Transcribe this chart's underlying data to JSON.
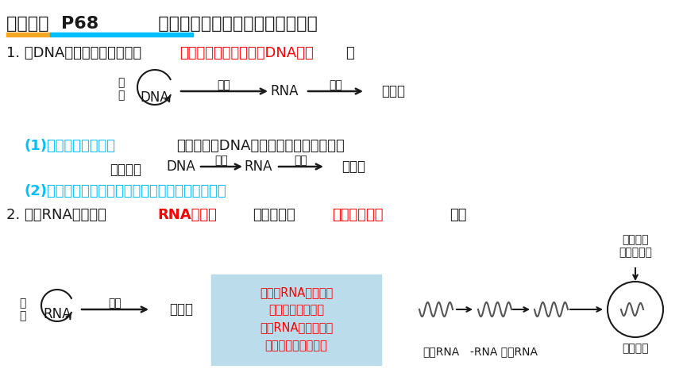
{
  "title_bold": "中心法则  P68",
  "title_normal": "  不同生物的不同遗传信息传递图解",
  "underline_color1": "#F5A623",
  "underline_color2": "#00BFFF",
  "bg_color": "#FFFFFF",
  "text_black": "#1a1a1a",
  "text_red": "#FF0000",
  "text_cyan": "#00BFFF",
  "note_bg": "#B0D8E8",
  "section1": "1. 以DNA为遗传物质的生物（",
  "section1_red": "原核生物、真核生物、DNA病毒",
  "section1_end": "）",
  "diagram1_label_left": "复\n制",
  "diagram1_dna": "DNA",
  "diagram1_arrow1_label": "转录",
  "diagram1_rna": "RNA",
  "diagram1_arrow2_label": "翻译",
  "diagram1_protein": "蛋白质",
  "sub1_cyan": "(1)高度分化的细胞：",
  "sub1_black": "（不会存在DNA复制，只有转录和翻译）",
  "sub2_label": "修改为：",
  "sub2_dna": "DNA",
  "sub2_arrow1": "转录",
  "sub2_rna": "RNA",
  "sub2_arrow2": "翻译",
  "sub2_protein": "蛋白质",
  "sub3_cyan": "(2)哺乳动物成熟的红细胞中，没有遗传信息的传递",
  "section2": "2. 一般RNA病毒（含",
  "section2_red1": "RNA复制酶",
  "section2_mid": "的病毒，如",
  "section2_red2": "烟草花叶病毒",
  "section2_end": "等）",
  "bottom_left_label": "复\n制",
  "bottom_rna": "RNA",
  "bottom_arrow_label": "翻译",
  "bottom_protein": "蛋白质",
  "note_text": "注意：RNA复制产生\n的是与遗传物质互\n补的RNA，因此不能\n直接作为遗传物质；",
  "right_top_label": "病毒专一\n衣壳蛋白质",
  "bottom_rna_label": "病毒RNA",
  "neg_rna_label": "-RNA 子代RNA",
  "complete_virus_label": "完整病毒"
}
